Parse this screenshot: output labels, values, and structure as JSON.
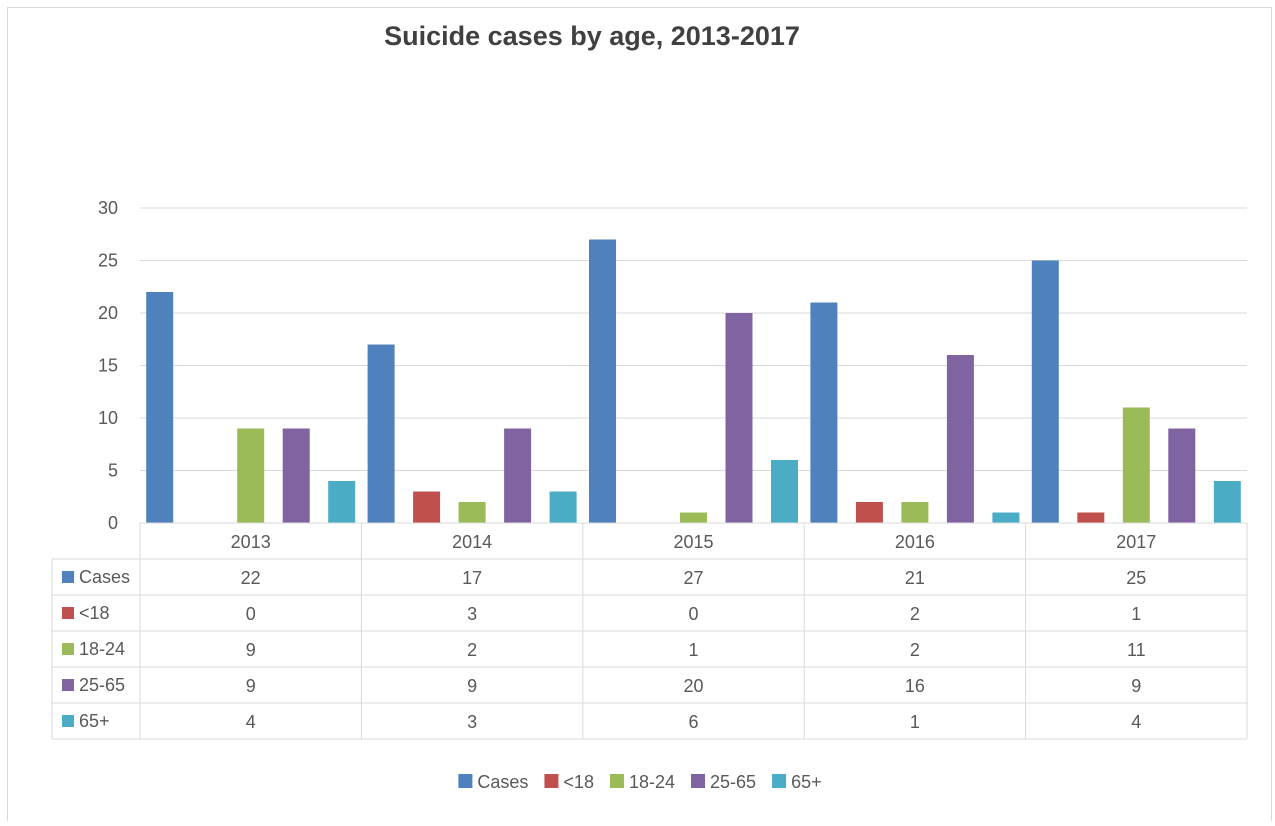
{
  "chart_data": {
    "type": "bar",
    "title": "Suicide cases by age, 2013-2017",
    "xlabel": "",
    "ylabel": "",
    "categories": [
      "2013",
      "2014",
      "2015",
      "2016",
      "2017"
    ],
    "ylim": [
      0,
      30
    ],
    "yticks": [
      "0",
      "5",
      "10",
      "15",
      "20",
      "25",
      "30"
    ],
    "grid": true,
    "legend_position": "bottom",
    "data_table": true,
    "series": [
      {
        "name": "Cases",
        "color": "#4f81bd",
        "values": [
          22,
          17,
          27,
          21,
          25
        ]
      },
      {
        "name": "<18",
        "color": "#c0504d",
        "values": [
          0,
          3,
          0,
          2,
          1
        ]
      },
      {
        "name": "18-24",
        "color": "#9bbb59",
        "values": [
          9,
          2,
          1,
          2,
          11
        ]
      },
      {
        "name": "25-65",
        "color": "#8064a2",
        "values": [
          9,
          9,
          20,
          16,
          9
        ]
      },
      {
        "name": "65+",
        "color": "#4bacc6",
        "values": [
          4,
          3,
          6,
          1,
          4
        ]
      }
    ]
  }
}
